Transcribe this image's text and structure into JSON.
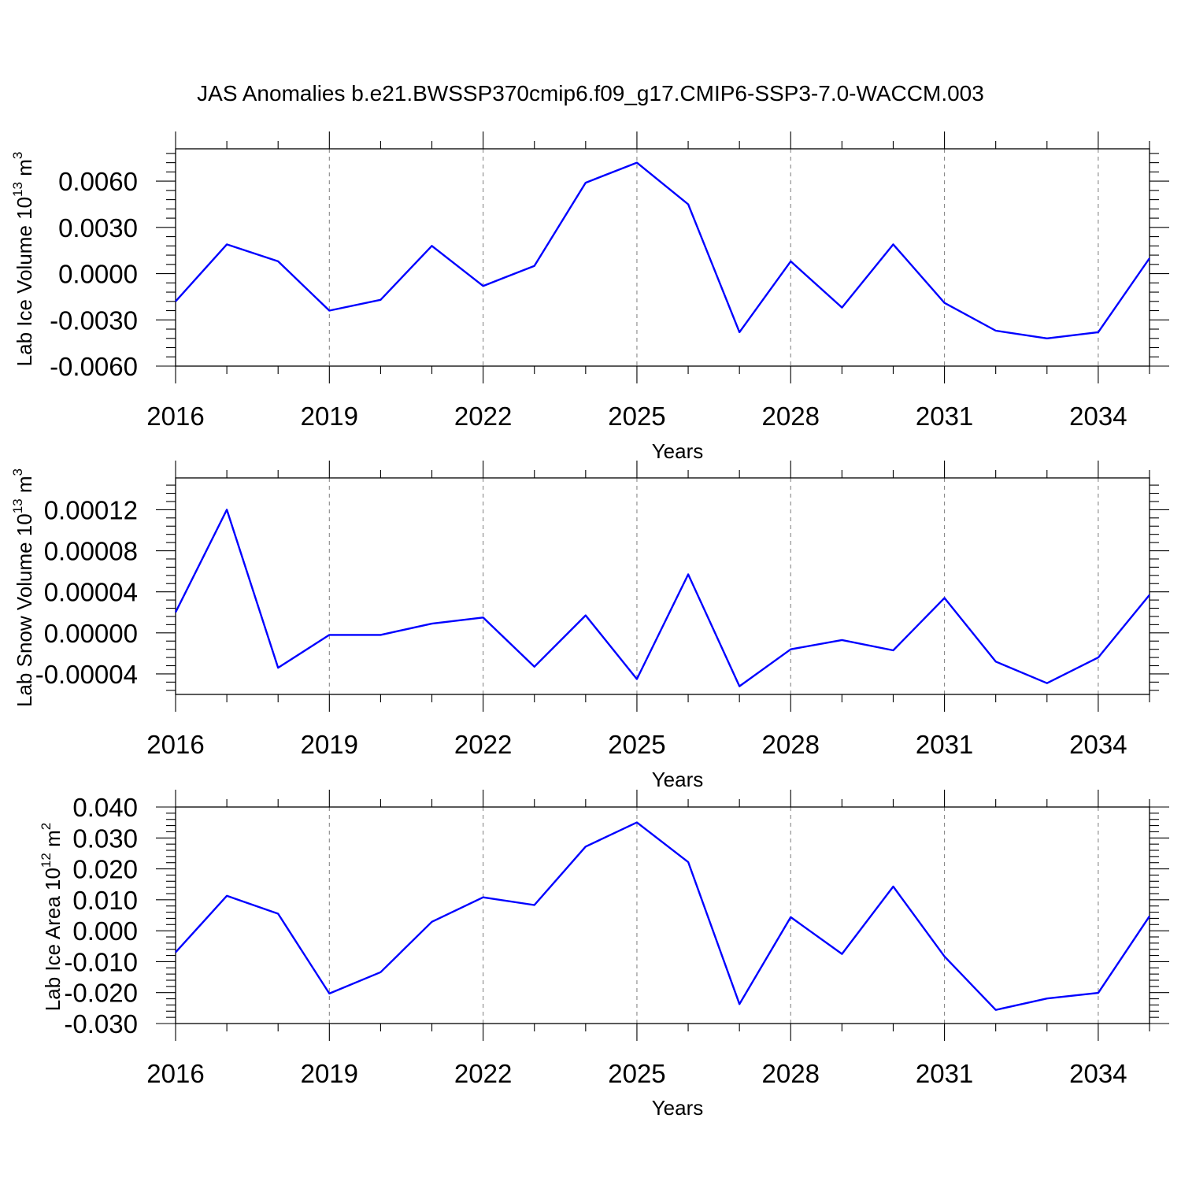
{
  "title": "JAS Anomalies b.e21.BWSSP370cmip6.f09_g17.CMIP6-SSP3-7.0-WACCM.003",
  "colors": {
    "line": "#0000ff",
    "grid": "#888888"
  },
  "chart_data": [
    {
      "type": "line",
      "ylabel": {
        "main": "Lab Ice Volume 10",
        "exp": "13",
        "unit": " m",
        "unit_exp": "3"
      },
      "xlabel": "Years",
      "xlim": [
        2016,
        2035
      ],
      "ylim": [
        -0.006,
        0.0081
      ],
      "xticks": [
        2016,
        2019,
        2022,
        2025,
        2028,
        2031,
        2034
      ],
      "xtick_labels": [
        "2016",
        "2019",
        "2022",
        "2025",
        "2028",
        "2031",
        "2034"
      ],
      "yticks": [
        -0.006,
        -0.003,
        0.0,
        0.003,
        0.006
      ],
      "ytick_labels": [
        "-0.0060",
        "-0.0030",
        "0.0000",
        "0.0030",
        "0.0060"
      ],
      "x": [
        2016,
        2017,
        2018,
        2019,
        2020,
        2021,
        2022,
        2023,
        2024,
        2025,
        2026,
        2027,
        2028,
        2029,
        2030,
        2031,
        2032,
        2033,
        2034,
        2035
      ],
      "values": [
        -0.0018,
        0.0019,
        0.0008,
        -0.0024,
        -0.0017,
        0.0018,
        -0.0008,
        0.0005,
        0.0059,
        0.0072,
        0.0045,
        -0.0038,
        0.0008,
        -0.0022,
        0.0019,
        -0.0019,
        -0.0037,
        -0.0042,
        -0.0038,
        0.001
      ]
    },
    {
      "type": "line",
      "ylabel": {
        "main": "Lab Snow Volume 10",
        "exp": "13",
        "unit": " m",
        "unit_exp": "3"
      },
      "xlabel": "Years",
      "xlim": [
        2016,
        2035
      ],
      "ylim": [
        -6e-05,
        0.000151
      ],
      "xticks": [
        2016,
        2019,
        2022,
        2025,
        2028,
        2031,
        2034
      ],
      "xtick_labels": [
        "2016",
        "2019",
        "2022",
        "2025",
        "2028",
        "2031",
        "2034"
      ],
      "yticks": [
        -4e-05,
        0.0,
        4e-05,
        8e-05,
        0.00012
      ],
      "ytick_labels": [
        "-0.00004",
        "0.00000",
        "0.00004",
        "0.00008",
        "0.00012"
      ],
      "x": [
        2016,
        2017,
        2018,
        2019,
        2020,
        2021,
        2022,
        2023,
        2024,
        2025,
        2026,
        2027,
        2028,
        2029,
        2030,
        2031,
        2032,
        2033,
        2034,
        2035
      ],
      "values": [
        2e-05,
        0.00012,
        -3.4e-05,
        -2e-06,
        -2e-06,
        9e-06,
        1.5e-05,
        -3.3e-05,
        1.7e-05,
        -4.5e-05,
        5.7e-05,
        -5.2e-05,
        -1.6e-05,
        -7e-06,
        -1.7e-05,
        3.4e-05,
        -2.8e-05,
        -4.9e-05,
        -2.4e-05,
        3.7e-05
      ]
    },
    {
      "type": "line",
      "ylabel": {
        "main": "Lab Ice Area 10",
        "exp": "12",
        "unit": " m",
        "unit_exp": "2"
      },
      "xlabel": "Years",
      "xlim": [
        2016,
        2035
      ],
      "ylim": [
        -0.03,
        0.04
      ],
      "xticks": [
        2016,
        2019,
        2022,
        2025,
        2028,
        2031,
        2034
      ],
      "xtick_labels": [
        "2016",
        "2019",
        "2022",
        "2025",
        "2028",
        "2031",
        "2034"
      ],
      "yticks": [
        -0.03,
        -0.02,
        -0.01,
        0.0,
        0.01,
        0.02,
        0.03,
        0.04
      ],
      "ytick_labels": [
        "-0.030",
        "-0.020",
        "-0.010",
        "0.000",
        "0.010",
        "0.020",
        "0.030",
        "0.040"
      ],
      "x": [
        2016,
        2017,
        2018,
        2019,
        2020,
        2021,
        2022,
        2023,
        2024,
        2025,
        2026,
        2027,
        2028,
        2029,
        2030,
        2031,
        2032,
        2033,
        2034,
        2035
      ],
      "values": [
        -0.007,
        0.0113,
        0.0055,
        -0.0203,
        -0.0134,
        0.0029,
        0.0108,
        0.0083,
        0.0272,
        0.035,
        0.0222,
        -0.0237,
        0.0044,
        -0.0075,
        0.0143,
        -0.0083,
        -0.0256,
        -0.0219,
        -0.0201,
        0.0047
      ]
    }
  ]
}
